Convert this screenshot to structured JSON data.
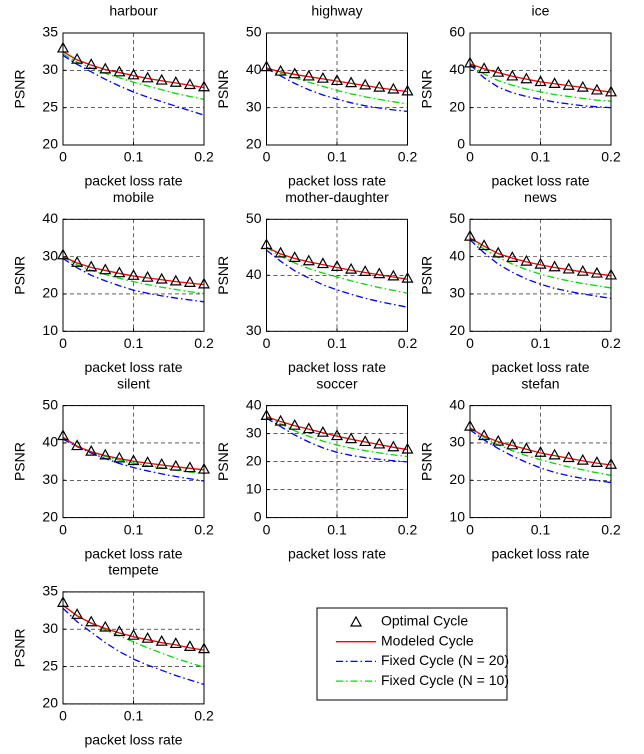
{
  "chart_data": [
    {
      "type": "line",
      "title": "harbour",
      "xlabel": "packet loss rate",
      "ylabel": "PSNR",
      "x": [
        0,
        0.02,
        0.04,
        0.06,
        0.08,
        0.1,
        0.12,
        0.14,
        0.16,
        0.18,
        0.2
      ],
      "xlim": [
        0,
        0.2
      ],
      "xticks": [
        0,
        0.1,
        0.2
      ],
      "ylim": [
        20,
        35
      ],
      "yticks": [
        20,
        25,
        30,
        35
      ],
      "grid": true,
      "series": [
        {
          "name": "Optimal Cycle",
          "color": "#000000",
          "marker": "^",
          "values": [
            33,
            31.5,
            30.8,
            30.2,
            29.8,
            29.4,
            29,
            28.7,
            28.4,
            28.1,
            27.8
          ]
        },
        {
          "name": "Modeled Cycle",
          "color": "#ff0000",
          "line": "-",
          "values": [
            32.5,
            31.4,
            30.7,
            30.1,
            29.7,
            29.3,
            28.9,
            28.6,
            28.3,
            28,
            27.7
          ]
        },
        {
          "name": "Fixed Cycle (N = 20)",
          "color": "#0000ff",
          "line": "-.",
          "values": [
            32,
            30.8,
            29.8,
            28.8,
            27.9,
            27.1,
            26.4,
            25.8,
            25.2,
            24.6,
            24
          ]
        },
        {
          "name": "Fixed Cycle (N = 10)",
          "color": "#00dd00",
          "line": "-.",
          "values": [
            32.2,
            31.1,
            30.3,
            29.6,
            29,
            28.4,
            27.9,
            27.4,
            26.9,
            26.5,
            26.1
          ]
        }
      ]
    },
    {
      "type": "line",
      "title": "highway",
      "xlabel": "packet loss rate",
      "ylabel": "PSNR",
      "x": [
        0,
        0.02,
        0.04,
        0.06,
        0.08,
        0.1,
        0.12,
        0.14,
        0.16,
        0.18,
        0.2
      ],
      "xlim": [
        0,
        0.2
      ],
      "xticks": [
        0,
        0.1,
        0.2
      ],
      "ylim": [
        20,
        50
      ],
      "yticks": [
        20,
        30,
        40,
        50
      ],
      "grid": true,
      "series": [
        {
          "name": "Optimal Cycle",
          "color": "#000000",
          "marker": "^",
          "values": [
            41,
            39.8,
            39.1,
            38.5,
            37.9,
            37.3,
            36.7,
            36.1,
            35.5,
            35,
            34.5
          ]
        },
        {
          "name": "Modeled Cycle",
          "color": "#ff0000",
          "line": "-",
          "values": [
            40.6,
            39.6,
            38.9,
            38.3,
            37.7,
            37.1,
            36.5,
            35.9,
            35.3,
            34.8,
            34.3
          ]
        },
        {
          "name": "Fixed Cycle (N = 20)",
          "color": "#0000ff",
          "line": "-.",
          "values": [
            40.5,
            38.5,
            36.5,
            34.8,
            33.4,
            32.3,
            31.3,
            30.5,
            29.9,
            29.4,
            29
          ]
        },
        {
          "name": "Fixed Cycle (N = 10)",
          "color": "#00dd00",
          "line": "-.",
          "values": [
            40.7,
            39.2,
            38,
            36.8,
            35.7,
            34.6,
            33.7,
            32.9,
            32.2,
            31.6,
            31
          ]
        }
      ]
    },
    {
      "type": "line",
      "title": "ice",
      "xlabel": "packet loss rate",
      "ylabel": "PSNR",
      "x": [
        0,
        0.02,
        0.04,
        0.06,
        0.08,
        0.1,
        0.12,
        0.14,
        0.16,
        0.18,
        0.2
      ],
      "xlim": [
        0,
        0.2
      ],
      "xticks": [
        0,
        0.1,
        0.2
      ],
      "ylim": [
        0,
        60
      ],
      "yticks": [
        0,
        20,
        40,
        60
      ],
      "grid": true,
      "series": [
        {
          "name": "Optimal Cycle",
          "color": "#000000",
          "marker": "^",
          "values": [
            44,
            41,
            39,
            37,
            35.5,
            34,
            33,
            32,
            31,
            29.5,
            28.5
          ]
        },
        {
          "name": "Modeled Cycle",
          "color": "#ff0000",
          "line": "-",
          "values": [
            43.5,
            40.8,
            38.8,
            36.8,
            35.3,
            33.8,
            32.8,
            31.8,
            30.8,
            29.3,
            28.3
          ]
        },
        {
          "name": "Fixed Cycle (N = 20)",
          "color": "#0000ff",
          "line": "-.",
          "values": [
            43,
            36,
            31,
            28,
            26,
            24.5,
            23,
            22,
            21,
            20.5,
            20
          ]
        },
        {
          "name": "Fixed Cycle (N = 10)",
          "color": "#00dd00",
          "line": "-.",
          "values": [
            43.5,
            38,
            34.5,
            32,
            30,
            28.5,
            27,
            26,
            25,
            24,
            23.5
          ]
        }
      ]
    },
    {
      "type": "line",
      "title": "mobile",
      "xlabel": "packet loss rate",
      "ylabel": "PSNR",
      "x": [
        0,
        0.02,
        0.04,
        0.06,
        0.08,
        0.1,
        0.12,
        0.14,
        0.16,
        0.18,
        0.2
      ],
      "xlim": [
        0,
        0.2
      ],
      "xticks": [
        0,
        0.1,
        0.2
      ],
      "ylim": [
        10,
        40
      ],
      "yticks": [
        10,
        20,
        30,
        40
      ],
      "grid": true,
      "series": [
        {
          "name": "Optimal Cycle",
          "color": "#000000",
          "marker": "^",
          "values": [
            30.5,
            28.5,
            27.3,
            26.5,
            25.7,
            25,
            24.5,
            24,
            23.5,
            23.1,
            22.7
          ]
        },
        {
          "name": "Modeled Cycle",
          "color": "#ff0000",
          "line": "-",
          "values": [
            30,
            28.3,
            27.1,
            26.3,
            25.5,
            24.8,
            24.3,
            23.8,
            23.3,
            22.9,
            22.5
          ]
        },
        {
          "name": "Fixed Cycle (N = 20)",
          "color": "#0000ff",
          "line": "-.",
          "values": [
            29.5,
            27,
            25,
            23.5,
            22.2,
            21,
            20.2,
            19.5,
            18.9,
            18.4,
            17.9
          ]
        },
        {
          "name": "Fixed Cycle (N = 10)",
          "color": "#00dd00",
          "line": "-.",
          "values": [
            30,
            27.8,
            26.3,
            25.2,
            24.2,
            23.3,
            22.5,
            21.8,
            21.2,
            20.6,
            20.1
          ]
        }
      ]
    },
    {
      "type": "line",
      "title": "mother-daughter",
      "xlabel": "packet loss rate",
      "ylabel": "PSNR",
      "x": [
        0,
        0.02,
        0.04,
        0.06,
        0.08,
        0.1,
        0.12,
        0.14,
        0.16,
        0.18,
        0.2
      ],
      "xlim": [
        0,
        0.2
      ],
      "xticks": [
        0,
        0.1,
        0.2
      ],
      "ylim": [
        30,
        50
      ],
      "yticks": [
        30,
        40,
        50
      ],
      "grid": true,
      "series": [
        {
          "name": "Optimal Cycle",
          "color": "#000000",
          "marker": "^",
          "values": [
            45.5,
            44,
            43.2,
            42.6,
            42.1,
            41.6,
            41.1,
            40.7,
            40.3,
            39.9,
            39.5
          ]
        },
        {
          "name": "Modeled Cycle",
          "color": "#ff0000",
          "line": "-",
          "values": [
            45,
            43.8,
            43,
            42.4,
            41.9,
            41.4,
            40.9,
            40.5,
            40.1,
            39.7,
            39.3
          ]
        },
        {
          "name": "Fixed Cycle (N = 20)",
          "color": "#0000ff",
          "line": "-.",
          "values": [
            44.5,
            42.5,
            40.8,
            39.5,
            38.3,
            37.4,
            36.6,
            35.9,
            35.3,
            34.8,
            34.3
          ]
        },
        {
          "name": "Fixed Cycle (N = 10)",
          "color": "#00dd00",
          "line": "-.",
          "values": [
            45,
            43.4,
            42.2,
            41.2,
            40.4,
            39.7,
            39,
            38.4,
            37.8,
            37.3,
            36.8
          ]
        }
      ]
    },
    {
      "type": "line",
      "title": "news",
      "xlabel": "packet loss rate",
      "ylabel": "PSNR",
      "x": [
        0,
        0.02,
        0.04,
        0.06,
        0.08,
        0.1,
        0.12,
        0.14,
        0.16,
        0.18,
        0.2
      ],
      "xlim": [
        0,
        0.2
      ],
      "xticks": [
        0,
        0.1,
        0.2
      ],
      "ylim": [
        20,
        50
      ],
      "yticks": [
        20,
        30,
        40,
        50
      ],
      "grid": true,
      "series": [
        {
          "name": "Optimal Cycle",
          "color": "#000000",
          "marker": "^",
          "values": [
            45.5,
            43,
            41,
            39.8,
            38.8,
            38,
            37.3,
            36.7,
            36.1,
            35.6,
            35.1
          ]
        },
        {
          "name": "Modeled Cycle",
          "color": "#ff0000",
          "line": "-",
          "values": [
            45,
            42.8,
            40.8,
            39.6,
            38.6,
            37.8,
            37.1,
            36.5,
            35.9,
            35.4,
            34.9
          ]
        },
        {
          "name": "Fixed Cycle (N = 20)",
          "color": "#0000ff",
          "line": "-.",
          "values": [
            44.5,
            41,
            38,
            35.8,
            34,
            32.6,
            31.5,
            30.7,
            30,
            29.4,
            28.8
          ]
        },
        {
          "name": "Fixed Cycle (N = 10)",
          "color": "#00dd00",
          "line": "-.",
          "values": [
            45,
            42,
            39.8,
            38,
            36.5,
            35.3,
            34.3,
            33.5,
            32.8,
            32.2,
            31.6
          ]
        }
      ]
    },
    {
      "type": "line",
      "title": "silent",
      "xlabel": "packet loss rate",
      "ylabel": "PSNR",
      "x": [
        0,
        0.02,
        0.04,
        0.06,
        0.08,
        0.1,
        0.12,
        0.14,
        0.16,
        0.18,
        0.2
      ],
      "xlim": [
        0,
        0.2
      ],
      "xticks": [
        0,
        0.1,
        0.2
      ],
      "ylim": [
        20,
        50
      ],
      "yticks": [
        20,
        30,
        40,
        50
      ],
      "grid": true,
      "series": [
        {
          "name": "Optimal Cycle",
          "color": "#000000",
          "marker": "^",
          "values": [
            42,
            39.3,
            37.8,
            36.8,
            36,
            35.3,
            34.8,
            34.3,
            33.8,
            33.4,
            33
          ]
        },
        {
          "name": "Modeled Cycle",
          "color": "#ff0000",
          "line": "-",
          "values": [
            41.5,
            39.1,
            37.6,
            36.6,
            35.8,
            35.1,
            34.6,
            34.1,
            33.6,
            33.2,
            32.8
          ]
        },
        {
          "name": "Fixed Cycle (N = 20)",
          "color": "#0000ff",
          "line": "-.",
          "values": [
            41,
            39,
            37.3,
            35.8,
            34.5,
            33.4,
            32.5,
            31.7,
            31,
            30.4,
            29.8
          ]
        },
        {
          "name": "Fixed Cycle (N = 10)",
          "color": "#00dd00",
          "line": "-.",
          "values": [
            41.5,
            39.2,
            37.6,
            36.4,
            35.4,
            34.6,
            33.9,
            33.3,
            32.7,
            32.2,
            31.8
          ]
        }
      ]
    },
    {
      "type": "line",
      "title": "soccer",
      "xlabel": "packet loss rate",
      "ylabel": "PSNR",
      "x": [
        0,
        0.02,
        0.04,
        0.06,
        0.08,
        0.1,
        0.12,
        0.14,
        0.16,
        0.18,
        0.2
      ],
      "xlim": [
        0,
        0.2
      ],
      "xticks": [
        0,
        0.1,
        0.2
      ],
      "ylim": [
        0,
        40
      ],
      "yticks": [
        0,
        10,
        20,
        30,
        40
      ],
      "grid": true,
      "series": [
        {
          "name": "Optimal Cycle",
          "color": "#000000",
          "marker": "^",
          "values": [
            36.5,
            34.5,
            33,
            31.8,
            30.5,
            29.3,
            28.2,
            27.2,
            26.3,
            25.3,
            24.5
          ]
        },
        {
          "name": "Modeled Cycle",
          "color": "#ff0000",
          "line": "-",
          "values": [
            36,
            34.3,
            32.8,
            31.6,
            30.3,
            29.1,
            28,
            27,
            26.1,
            25.1,
            24.3
          ]
        },
        {
          "name": "Fixed Cycle (N = 20)",
          "color": "#0000ff",
          "line": "-.",
          "values": [
            35.5,
            32.5,
            29.5,
            27,
            24.9,
            23.3,
            22.2,
            21.4,
            20.8,
            20.3,
            19.9
          ]
        },
        {
          "name": "Fixed Cycle (N = 10)",
          "color": "#00dd00",
          "line": "-.",
          "values": [
            36,
            33.5,
            31,
            29,
            27.3,
            25.9,
            24.8,
            23.9,
            23.1,
            22.4,
            21.8
          ]
        }
      ]
    },
    {
      "type": "line",
      "title": "stefan",
      "xlabel": "packet loss rate",
      "ylabel": "PSNR",
      "x": [
        0,
        0.02,
        0.04,
        0.06,
        0.08,
        0.1,
        0.12,
        0.14,
        0.16,
        0.18,
        0.2
      ],
      "xlim": [
        0,
        0.2
      ],
      "xticks": [
        0,
        0.1,
        0.2
      ],
      "ylim": [
        10,
        40
      ],
      "yticks": [
        10,
        20,
        30,
        40
      ],
      "grid": true,
      "series": [
        {
          "name": "Optimal Cycle",
          "color": "#000000",
          "marker": "^",
          "values": [
            34.5,
            32,
            30.5,
            29.5,
            28.5,
            27.5,
            26.8,
            26.1,
            25.4,
            24.8,
            24.3
          ]
        },
        {
          "name": "Modeled Cycle",
          "color": "#ff0000",
          "line": "-",
          "values": [
            34,
            31.8,
            30.3,
            29.3,
            28.3,
            27.3,
            26.6,
            25.9,
            25.2,
            24.6,
            24.1
          ]
        },
        {
          "name": "Fixed Cycle (N = 20)",
          "color": "#0000ff",
          "line": "-.",
          "values": [
            33.5,
            30.8,
            28.5,
            26.5,
            24.8,
            23.3,
            22.1,
            21.2,
            20.5,
            19.9,
            19.4
          ]
        },
        {
          "name": "Fixed Cycle (N = 10)",
          "color": "#00dd00",
          "line": "-.",
          "values": [
            34,
            31.5,
            29.5,
            27.9,
            26.6,
            25.5,
            24.5,
            23.6,
            22.8,
            22,
            21.3
          ]
        }
      ]
    },
    {
      "type": "line",
      "title": "tempete",
      "xlabel": "packet loss rate",
      "ylabel": "PSNR",
      "x": [
        0,
        0.02,
        0.04,
        0.06,
        0.08,
        0.1,
        0.12,
        0.14,
        0.16,
        0.18,
        0.2
      ],
      "xlim": [
        0,
        0.2
      ],
      "xticks": [
        0,
        0.1,
        0.2
      ],
      "ylim": [
        20,
        35
      ],
      "yticks": [
        20,
        25,
        30,
        35
      ],
      "grid": true,
      "series": [
        {
          "name": "Optimal Cycle",
          "color": "#000000",
          "marker": "^",
          "values": [
            33.6,
            32,
            31,
            30.3,
            29.7,
            29.2,
            28.8,
            28.4,
            28.1,
            27.7,
            27.4
          ]
        },
        {
          "name": "Modeled Cycle",
          "color": "#ff0000",
          "line": "-",
          "values": [
            33.2,
            31.8,
            30.8,
            30.1,
            29.5,
            29,
            28.6,
            28.2,
            27.9,
            27.5,
            27.2
          ]
        },
        {
          "name": "Fixed Cycle (N = 20)",
          "color": "#0000ff",
          "line": "-.",
          "values": [
            32.8,
            31,
            29.6,
            28.2,
            27,
            26,
            25.2,
            24.5,
            23.8,
            23.2,
            22.6
          ]
        },
        {
          "name": "Fixed Cycle (N = 10)",
          "color": "#00dd00",
          "line": "-.",
          "values": [
            33.2,
            31.8,
            30.8,
            29.9,
            29.1,
            28.3,
            27.5,
            26.8,
            26.1,
            25.5,
            24.9
          ]
        }
      ]
    }
  ]
}
